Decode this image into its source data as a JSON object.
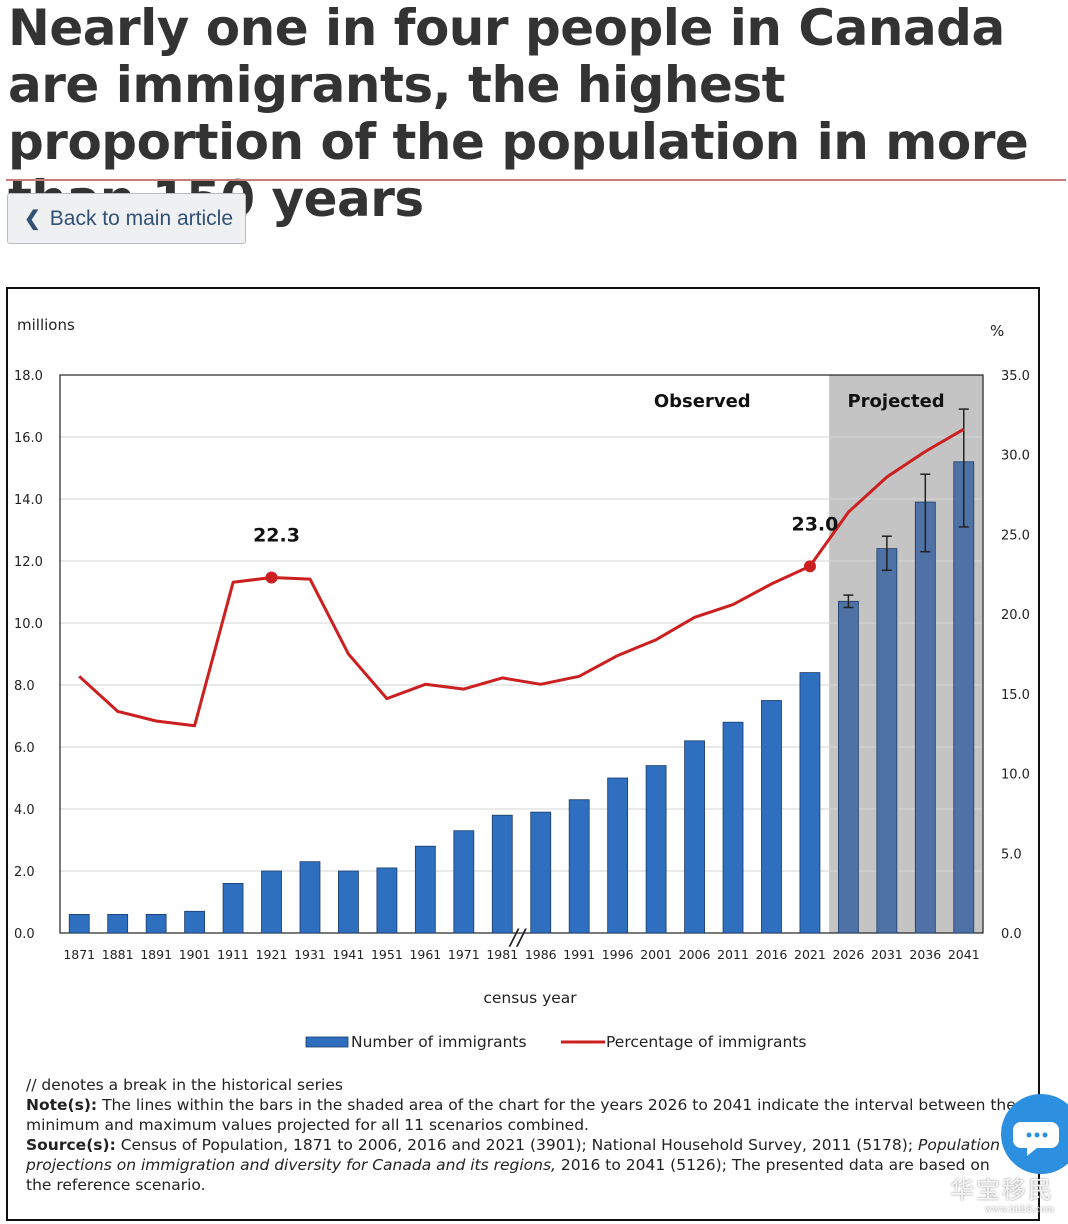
{
  "page": {
    "headline": "Nearly one in four people in Canada are immigrants, the highest proportion of the population in more than 150 years",
    "back_label": "Back to main article"
  },
  "chart_data": {
    "type": "bar+line",
    "left_axis_unit": "millions",
    "right_axis_unit": "%",
    "xlabel": "census year",
    "categories": [
      "1871",
      "1881",
      "1891",
      "1901",
      "1911",
      "1921",
      "1931",
      "1941",
      "1951",
      "1961",
      "1971",
      "1981",
      "1986",
      "1991",
      "1996",
      "2001",
      "2006",
      "2011",
      "2016",
      "2021",
      "2026",
      "2031",
      "2036",
      "2041"
    ],
    "left_ylim": [
      0,
      18
    ],
    "left_ticks": [
      "0.0",
      "2.0",
      "4.0",
      "6.0",
      "8.0",
      "10.0",
      "12.0",
      "14.0",
      "16.0",
      "18.0"
    ],
    "right_ylim": [
      0,
      35
    ],
    "right_ticks": [
      "0.0",
      "5.0",
      "10.0",
      "15.0",
      "20.0",
      "25.0",
      "30.0",
      "35.0"
    ],
    "grid": true,
    "series": [
      {
        "name": "Number of immigrants",
        "type": "bar",
        "color": "#2e6fbf",
        "projected_color": "#4f72a6",
        "values": [
          0.6,
          0.6,
          0.6,
          0.7,
          1.6,
          2.0,
          2.3,
          2.0,
          2.1,
          2.8,
          3.3,
          3.8,
          3.9,
          4.3,
          5.0,
          5.4,
          6.2,
          6.8,
          7.5,
          8.4,
          10.7,
          12.4,
          13.9,
          15.2
        ],
        "error_low": [
          null,
          null,
          null,
          null,
          null,
          null,
          null,
          null,
          null,
          null,
          null,
          null,
          null,
          null,
          null,
          null,
          null,
          null,
          null,
          null,
          10.5,
          11.7,
          12.3,
          13.1
        ],
        "error_high": [
          null,
          null,
          null,
          null,
          null,
          null,
          null,
          null,
          null,
          null,
          null,
          null,
          null,
          null,
          null,
          null,
          null,
          null,
          null,
          null,
          10.9,
          12.8,
          14.8,
          16.9
        ]
      },
      {
        "name": "Percentage of immigrants",
        "type": "line",
        "color": "#cc1f1f",
        "values": [
          16.1,
          13.9,
          13.3,
          13.0,
          22.0,
          22.3,
          22.2,
          17.5,
          14.7,
          15.6,
          15.3,
          16.0,
          15.6,
          16.1,
          17.4,
          18.4,
          19.8,
          20.6,
          21.9,
          23.0,
          26.4,
          28.6,
          30.2,
          31.6
        ]
      }
    ],
    "annotations": [
      {
        "text": "22.3",
        "category": "1921"
      },
      {
        "text": "23.0",
        "category": "2021"
      }
    ],
    "regions": {
      "observed_label": "Observed",
      "projected_label": "Projected",
      "projected_from": "2026"
    },
    "break_marker": "//",
    "legend_position": "bottom-center"
  },
  "notes": {
    "break_note": "// denotes a break in the historical series",
    "note_label": "Note(s):",
    "note_text": "The lines within the bars in the shaded area of the chart for the years 2026 to 2041 indicate the interval between the minimum and maximum values projected for all 11 scenarios combined.",
    "source_label": "Source(s):",
    "source_text": "Census of Population, 1871 to 2006, 2016 and 2021 (3901); National Household Survey, 2011 (5178);",
    "source_italic": "Population projections on immigration and diversity for Canada and its regions,",
    "source_tail": "2016 to 2041 (5126); The presented data are based on the reference scenario."
  },
  "watermark": {
    "main": "华宝移民",
    "sub": "www.hbb8.com"
  },
  "icons": {
    "back": "chevron-left-icon",
    "chat": "chat-bubble-icon"
  }
}
